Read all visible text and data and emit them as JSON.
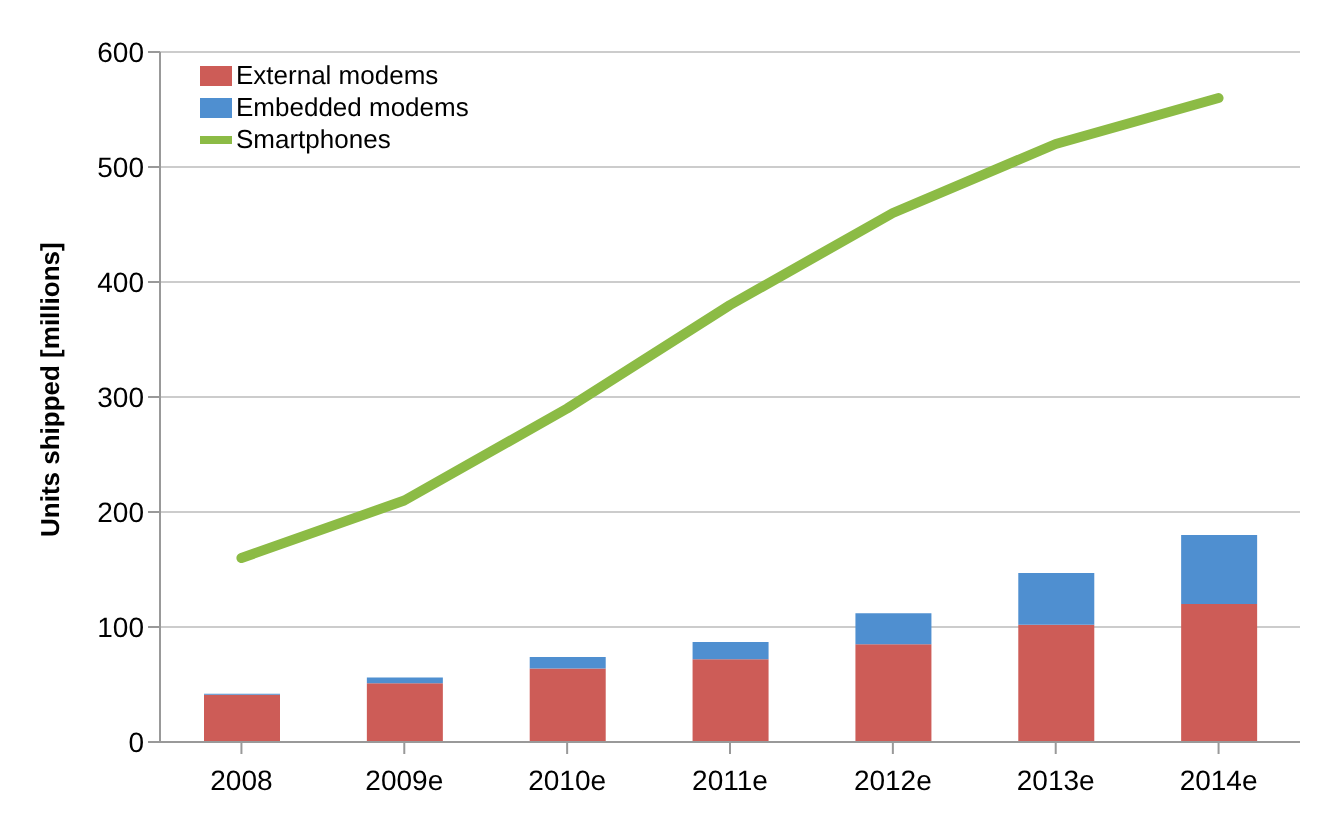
{
  "chart_data": {
    "type": "bar",
    "stacked": true,
    "ylabel": "Units shipped [millions]",
    "categories": [
      "2008",
      "2009e",
      "2010e",
      "2011e",
      "2012e",
      "2013e",
      "2014e"
    ],
    "series": [
      {
        "name": "External modems",
        "color": "#cd5c57",
        "values": [
          41,
          51,
          64,
          72,
          85,
          102,
          120
        ]
      },
      {
        "name": "Embedded modems",
        "color": "#4f8fd0",
        "values": [
          1,
          5,
          10,
          15,
          27,
          45,
          60
        ]
      },
      {
        "name": "Smartphones",
        "type": "line",
        "color": "#8cbb45",
        "values": [
          160,
          210,
          290,
          380,
          460,
          520,
          560
        ]
      }
    ],
    "ylim": [
      0,
      600
    ],
    "yticks": [
      0,
      100,
      200,
      300,
      400,
      500,
      600
    ],
    "grid": "y",
    "legend": "top left",
    "marker": "none"
  }
}
